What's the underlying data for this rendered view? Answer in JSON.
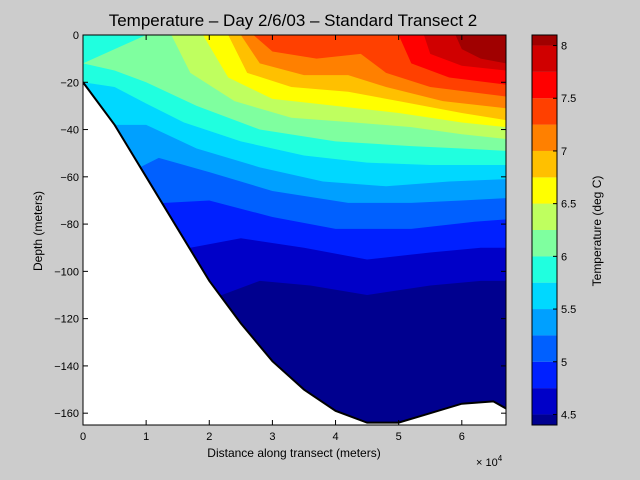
{
  "chart_data": {
    "type": "filled-contour",
    "title": "Temperature – Day 2/6/03 – Standard Transect 2",
    "xlabel": "Distance along transect (meters)",
    "ylabel": "Depth (meters)",
    "x_multiplier_label": "× 10",
    "x_multiplier_exponent": "4",
    "xlim": [
      0,
      67000
    ],
    "ylim": [
      -165,
      0
    ],
    "x_ticks": [
      {
        "value": 0,
        "label": "0"
      },
      {
        "value": 10000,
        "label": "1"
      },
      {
        "value": 20000,
        "label": "2"
      },
      {
        "value": 30000,
        "label": "3"
      },
      {
        "value": 40000,
        "label": "4"
      },
      {
        "value": 50000,
        "label": "5"
      },
      {
        "value": 60000,
        "label": "6"
      }
    ],
    "y_ticks": [
      {
        "value": 0,
        "label": "0"
      },
      {
        "value": -20,
        "label": "−20"
      },
      {
        "value": -40,
        "label": "−40"
      },
      {
        "value": -60,
        "label": "−60"
      },
      {
        "value": -80,
        "label": "−80"
      },
      {
        "value": -100,
        "label": "−100"
      },
      {
        "value": -120,
        "label": "−120"
      },
      {
        "value": -140,
        "label": "−140"
      },
      {
        "value": -160,
        "label": "−160"
      }
    ],
    "colorbar": {
      "label": "Temperature (deg C)",
      "range": [
        4.4,
        8.1
      ],
      "levels": [
        4.4,
        4.5,
        4.75,
        5.0,
        5.25,
        5.5,
        5.75,
        6.0,
        6.25,
        6.5,
        6.75,
        7.0,
        7.25,
        7.5,
        7.75,
        8.0,
        8.1
      ],
      "colors": [
        "#00008f",
        "#0000c8",
        "#0020ff",
        "#0060ff",
        "#00a0ff",
        "#00d8ff",
        "#20ffdf",
        "#7fff9f",
        "#bfff5f",
        "#ffff00",
        "#ffc000",
        "#ff8000",
        "#ff4000",
        "#ff0000",
        "#d00000",
        "#a00000"
      ],
      "ticks": [
        {
          "value": 4.5,
          "label": "4.5"
        },
        {
          "value": 5,
          "label": "5"
        },
        {
          "value": 5.5,
          "label": "5.5"
        },
        {
          "value": 6,
          "label": "6"
        },
        {
          "value": 6.5,
          "label": "6.5"
        },
        {
          "value": 7,
          "label": "7"
        },
        {
          "value": 7.5,
          "label": "7.5"
        },
        {
          "value": 8,
          "label": "8"
        }
      ]
    },
    "bottom_profile": [
      [
        0,
        -20
      ],
      [
        5000,
        -38
      ],
      [
        10000,
        -60
      ],
      [
        15000,
        -82
      ],
      [
        20000,
        -104
      ],
      [
        25000,
        -122
      ],
      [
        30000,
        -138
      ],
      [
        35000,
        -150
      ],
      [
        40000,
        -159
      ],
      [
        45000,
        -164
      ],
      [
        50000,
        -164
      ],
      [
        55000,
        -160
      ],
      [
        60000,
        -156
      ],
      [
        65000,
        -155
      ],
      [
        67000,
        -158
      ]
    ],
    "contour_boundaries": [
      {
        "below_level": 8.0,
        "points": [
          [
            59000,
            0
          ],
          [
            60000,
            -6
          ],
          [
            63000,
            -10
          ],
          [
            67000,
            -12
          ]
        ]
      },
      {
        "below_level": 7.75,
        "points": [
          [
            54000,
            0
          ],
          [
            55000,
            -8
          ],
          [
            60000,
            -13
          ],
          [
            67000,
            -15
          ]
        ]
      },
      {
        "below_level": 7.5,
        "points": [
          [
            50000,
            0
          ],
          [
            52000,
            -12
          ],
          [
            58000,
            -18
          ],
          [
            67000,
            -21
          ]
        ]
      },
      {
        "below_level": 7.25,
        "points": [
          [
            27000,
            0
          ],
          [
            30000,
            -7
          ],
          [
            37000,
            -10
          ],
          [
            44000,
            -8
          ],
          [
            48000,
            -16
          ],
          [
            55000,
            -22
          ],
          [
            67000,
            -26
          ]
        ]
      },
      {
        "below_level": 7.0,
        "points": [
          [
            25000,
            0
          ],
          [
            28000,
            -12
          ],
          [
            35000,
            -17
          ],
          [
            42000,
            -17
          ],
          [
            48000,
            -22
          ],
          [
            57000,
            -28
          ],
          [
            67000,
            -31
          ]
        ]
      },
      {
        "below_level": 6.75,
        "points": [
          [
            23000,
            0
          ],
          [
            26000,
            -16
          ],
          [
            33000,
            -22
          ],
          [
            42000,
            -24
          ],
          [
            50000,
            -28
          ],
          [
            60000,
            -33
          ],
          [
            67000,
            -36
          ]
        ]
      },
      {
        "below_level": 6.5,
        "points": [
          [
            19000,
            0
          ],
          [
            23000,
            -18
          ],
          [
            30000,
            -27
          ],
          [
            40000,
            -30
          ],
          [
            50000,
            -33
          ],
          [
            60000,
            -37
          ],
          [
            67000,
            -39
          ]
        ]
      },
      {
        "below_level": 6.25,
        "points": [
          [
            14000,
            0
          ],
          [
            17000,
            -16
          ],
          [
            24000,
            -28
          ],
          [
            33000,
            -35
          ],
          [
            43000,
            -37
          ],
          [
            52000,
            -39
          ],
          [
            60000,
            -42
          ],
          [
            67000,
            -44
          ]
        ]
      },
      {
        "below_level": 6.0,
        "points": [
          [
            10000,
            0
          ],
          [
            0,
            -12
          ],
          [
            5000,
            -15
          ],
          [
            10000,
            -20
          ],
          [
            18000,
            -30
          ],
          [
            28000,
            -40
          ],
          [
            40000,
            -45
          ],
          [
            52000,
            -47
          ],
          [
            60000,
            -48
          ],
          [
            67000,
            -49
          ]
        ]
      },
      {
        "below_level": 5.75,
        "points": [
          [
            0,
            -20
          ],
          [
            5000,
            -22
          ],
          [
            10000,
            -29
          ],
          [
            16000,
            -37
          ],
          [
            25000,
            -45
          ],
          [
            35000,
            -51
          ],
          [
            45000,
            -54
          ],
          [
            55000,
            -55
          ],
          [
            67000,
            -55
          ]
        ]
      },
      {
        "below_level": 5.5,
        "points": [
          [
            5000,
            -38
          ],
          [
            10000,
            -38
          ],
          [
            18000,
            -48
          ],
          [
            28000,
            -56
          ],
          [
            38000,
            -62
          ],
          [
            48000,
            -64
          ],
          [
            58000,
            -62
          ],
          [
            67000,
            -61
          ]
        ]
      },
      {
        "below_level": 5.25,
        "points": [
          [
            9000,
            -56
          ],
          [
            12000,
            -52
          ],
          [
            20000,
            -58
          ],
          [
            30000,
            -66
          ],
          [
            42000,
            -71
          ],
          [
            52000,
            -71
          ],
          [
            60000,
            -70
          ],
          [
            67000,
            -69
          ]
        ]
      },
      {
        "below_level": 5.0,
        "points": [
          [
            13000,
            -71
          ],
          [
            20000,
            -70
          ],
          [
            30000,
            -77
          ],
          [
            40000,
            -82
          ],
          [
            52000,
            -82
          ],
          [
            62000,
            -79
          ],
          [
            67000,
            -78
          ]
        ]
      },
      {
        "below_level": 4.75,
        "points": [
          [
            17000,
            -90
          ],
          [
            25000,
            -86
          ],
          [
            35000,
            -90
          ],
          [
            45000,
            -95
          ],
          [
            55000,
            -92
          ],
          [
            63000,
            -90
          ],
          [
            67000,
            -90
          ]
        ]
      },
      {
        "below_level": 4.5,
        "points": [
          [
            22000,
            -110
          ],
          [
            28000,
            -104
          ],
          [
            36000,
            -106
          ],
          [
            45000,
            -110
          ],
          [
            55000,
            -106
          ],
          [
            63000,
            -104
          ],
          [
            67000,
            -104
          ]
        ]
      }
    ]
  }
}
